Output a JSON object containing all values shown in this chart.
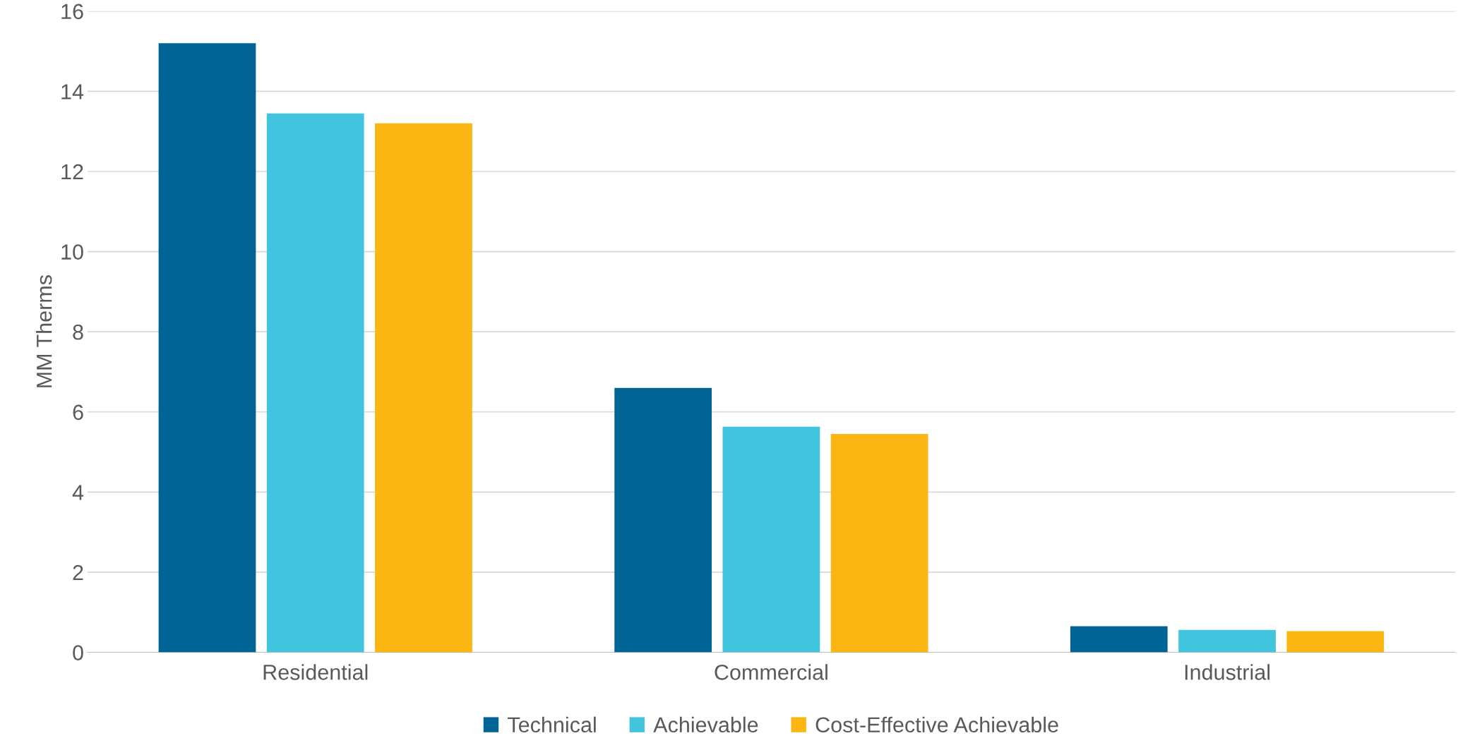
{
  "chart_data": {
    "type": "bar",
    "ylabel": "MM Therms",
    "categories": [
      "Residential",
      "Commercial",
      "Industrial"
    ],
    "series": [
      {
        "name": "Technical",
        "color": "#006494",
        "values": [
          15.2,
          6.6,
          0.65
        ]
      },
      {
        "name": "Achievable",
        "color": "#41c4dd",
        "values": [
          13.45,
          5.63,
          0.56
        ]
      },
      {
        "name": "Cost-Effective Achievable",
        "color": "#fbb613",
        "values": [
          13.2,
          5.45,
          0.53
        ]
      }
    ],
    "ylim": [
      0,
      16
    ],
    "yticks": [
      0,
      2,
      4,
      6,
      8,
      10,
      12,
      14,
      16
    ],
    "grid": "y",
    "legend": "bottom"
  }
}
